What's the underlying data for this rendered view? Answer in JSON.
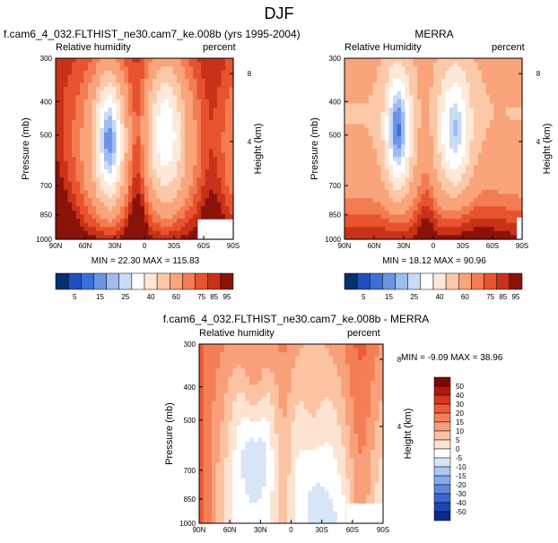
{
  "figure_title": "DJF",
  "chart_data": [
    {
      "type": "heatmap",
      "title": "f.cam6_4_032.FLTHIST_ne30.cam7_ke.008b (yrs 1995-2004)",
      "left_label": "Relative humidity",
      "right_label": "percent",
      "xlabel": "",
      "ylabel": "Pressure (mb)",
      "y2label": "Height (km)",
      "x_ticks": [
        "90N",
        "60N",
        "30N",
        "0",
        "30S",
        "60S",
        "90S"
      ],
      "y_ticks": [
        "300",
        "400",
        "500",
        "700",
        "850",
        "1000"
      ],
      "y2_ticks": [
        "8",
        "4"
      ],
      "stats": "MIN = 22.30  MAX = 115.83",
      "min": 22.3,
      "max": 115.83,
      "colorbar": {
        "levels": [
          "5",
          "15",
          "25",
          "40",
          "60",
          "75",
          "85",
          "95"
        ]
      }
    },
    {
      "type": "heatmap",
      "title": "MERRA",
      "left_label": "Relative Humidity",
      "right_label": "percent",
      "xlabel": "",
      "ylabel": "Pressure (mb)",
      "y2label": "Height (km)",
      "x_ticks": [
        "90N",
        "60N",
        "30N",
        "0",
        "30S",
        "60S",
        "90S"
      ],
      "y_ticks": [
        "300",
        "400",
        "500",
        "700",
        "850",
        "1000"
      ],
      "y2_ticks": [
        "8",
        "4"
      ],
      "stats": "MIN = 18.12  MAX = 90.96",
      "min": 18.12,
      "max": 90.96,
      "colorbar": {
        "levels": [
          "5",
          "15",
          "25",
          "40",
          "60",
          "75",
          "85",
          "95"
        ]
      }
    },
    {
      "type": "heatmap",
      "title": "f.cam6_4_032.FLTHIST_ne30.cam7_ke.008b - MERRA",
      "left_label": "Relative humidity",
      "right_label": "percent",
      "xlabel": "",
      "ylabel": "Pressure (mb)",
      "y2label": "Height (km)",
      "x_ticks": [
        "90N",
        "60N",
        "30N",
        "0",
        "30S",
        "60S",
        "90S"
      ],
      "y_ticks": [
        "300",
        "400",
        "500",
        "700",
        "850",
        "1000"
      ],
      "y2_ticks": [
        "8",
        "4"
      ],
      "stats": "MIN = -9.09  MAX = 38.96",
      "min": -9.09,
      "max": 38.96,
      "colorbar": {
        "levels": [
          "50",
          "40",
          "30",
          "20",
          "15",
          "10",
          "5",
          "0",
          "-5",
          "-10",
          "-15",
          "-20",
          "-30",
          "-40",
          "-50"
        ]
      }
    }
  ],
  "colors": {
    "rh_scale": [
      "#08306b",
      "#1f4fbf",
      "#3a6fd8",
      "#6a95e6",
      "#9fbcef",
      "#cbdaf6",
      "#ffffff",
      "#fde8d9",
      "#fcc9a8",
      "#f9a47a",
      "#f47c52",
      "#e8532f",
      "#c83218",
      "#8b1208"
    ],
    "diff_scale": [
      "#7a0a05",
      "#b5180c",
      "#d8361c",
      "#ec5b36",
      "#f47e55",
      "#f8a07a",
      "#fbc3a2",
      "#fde3d1",
      "#ffffff",
      "#d8e5f8",
      "#aec8f1",
      "#86aaea",
      "#5d88e0",
      "#3a66d2",
      "#1d45b8",
      "#0b2a90"
    ]
  }
}
